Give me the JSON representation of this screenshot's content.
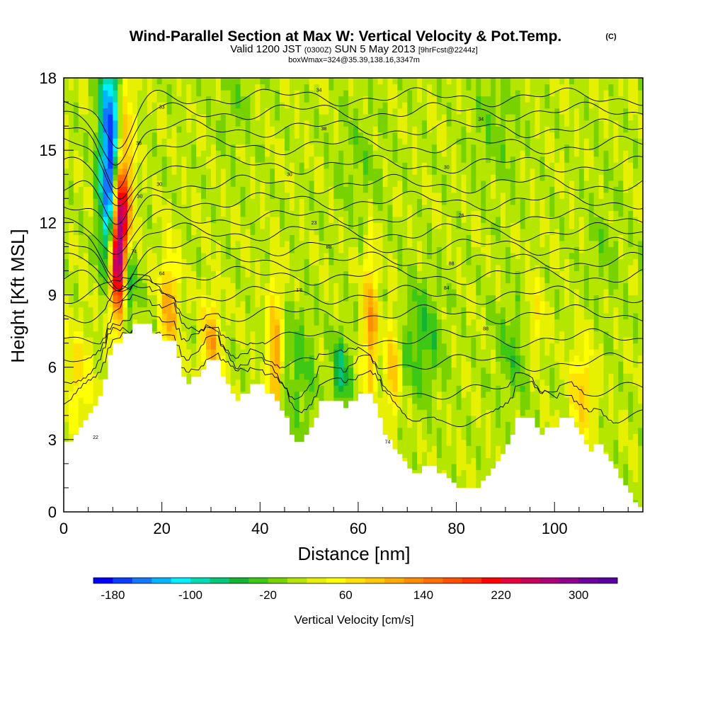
{
  "chart_data": {
    "type": "heatmap",
    "title": "Wind-Parallel Section at Max W: Vertical Velocity & Pot.Temp.",
    "title_mark": "(C)",
    "subtitle_valid": "Valid 1200 JST",
    "subtitle_z": "(0300Z)",
    "subtitle_date": "SUN 5 May 2013",
    "subtitle_fcst": "[9hrFcst@2244z]",
    "subtitle_box": "boxWmax=324@35.39,138.16,3347m",
    "xlabel": "Distance [nm]",
    "ylabel": "Height [Kft MSL]",
    "xlim": [
      0,
      118
    ],
    "ylim": [
      0,
      18
    ],
    "x_ticks": [
      "0",
      "20",
      "40",
      "60",
      "80",
      "100"
    ],
    "x_tick_values": [
      0,
      20,
      40,
      60,
      80,
      100
    ],
    "y_ticks": [
      "0",
      "3",
      "6",
      "9",
      "12",
      "15",
      "18"
    ],
    "y_tick_values": [
      0,
      3,
      6,
      9,
      12,
      15,
      18
    ],
    "colorbar": {
      "label": "Vertical Velocity [cm/s]",
      "tick_labels": [
        "-180",
        "-100",
        "-20",
        "60",
        "140",
        "220",
        "300"
      ],
      "min": -200,
      "max": 340,
      "step": 20,
      "colors": [
        "#0000ff",
        "#0a3cff",
        "#1478ff",
        "#00b4ff",
        "#00f0ff",
        "#00dcb4",
        "#00c878",
        "#14b432",
        "#3cc814",
        "#78d200",
        "#b4e600",
        "#e6f000",
        "#ffff00",
        "#ffe100",
        "#ffc800",
        "#ffaa00",
        "#ff8c00",
        "#ff6e00",
        "#ff5000",
        "#ff3200",
        "#ff0000",
        "#e6003c",
        "#c8005a",
        "#aa0078",
        "#8c008c",
        "#6e009b",
        "#5a00a0"
      ]
    },
    "terrain_height_kft": [
      [
        0,
        2.9
      ],
      [
        2,
        3.2
      ],
      [
        3,
        3.5
      ],
      [
        4,
        3.8
      ],
      [
        5,
        4.1
      ],
      [
        6,
        4.4
      ],
      [
        7,
        4.8
      ],
      [
        8,
        5.5
      ],
      [
        9,
        6.5
      ],
      [
        10,
        7.0
      ],
      [
        11,
        7.0
      ],
      [
        12,
        7.4
      ],
      [
        14,
        7.8
      ],
      [
        15,
        7.8
      ],
      [
        17,
        7.8
      ],
      [
        18,
        7.4
      ],
      [
        20,
        7.1
      ],
      [
        22,
        7.1
      ],
      [
        23,
        6.4
      ],
      [
        24,
        5.6
      ],
      [
        25,
        5.3
      ],
      [
        26,
        5.6
      ],
      [
        28,
        5.9
      ],
      [
        29,
        6.3
      ],
      [
        31,
        6.3
      ],
      [
        32,
        5.6
      ],
      [
        33,
        5.3
      ],
      [
        34,
        4.9
      ],
      [
        35,
        4.6
      ],
      [
        36,
        4.9
      ],
      [
        38,
        5.3
      ],
      [
        40,
        5.3
      ],
      [
        41,
        4.9
      ],
      [
        43,
        4.6
      ],
      [
        44,
        4.2
      ],
      [
        45,
        3.9
      ],
      [
        46,
        3.2
      ],
      [
        47,
        2.9
      ],
      [
        48,
        2.9
      ],
      [
        49,
        3.2
      ],
      [
        50,
        3.5
      ],
      [
        51,
        3.9
      ],
      [
        52,
        4.6
      ],
      [
        56,
        4.6
      ],
      [
        57,
        4.3
      ],
      [
        58,
        4.6
      ],
      [
        60,
        4.9
      ],
      [
        62,
        4.9
      ],
      [
        63,
        4.5
      ],
      [
        64,
        3.9
      ],
      [
        65,
        3.2
      ],
      [
        66,
        3.0
      ],
      [
        67,
        2.6
      ],
      [
        68,
        2.4
      ],
      [
        69,
        2.1
      ],
      [
        70,
        1.8
      ],
      [
        71,
        1.6
      ],
      [
        73,
        1.9
      ],
      [
        75,
        1.9
      ],
      [
        76,
        1.6
      ],
      [
        78,
        1.4
      ],
      [
        79,
        1.2
      ],
      [
        80,
        1.0
      ],
      [
        84,
        1.0
      ],
      [
        85,
        1.3
      ],
      [
        86,
        1.5
      ],
      [
        87,
        1.8
      ],
      [
        88,
        2.1
      ],
      [
        89,
        2.4
      ],
      [
        90,
        2.8
      ],
      [
        91,
        3.2
      ],
      [
        92,
        3.9
      ],
      [
        95,
        3.9
      ],
      [
        96,
        3.5
      ],
      [
        97,
        3.2
      ],
      [
        98,
        3.5
      ],
      [
        100,
        3.5
      ],
      [
        101,
        3.9
      ],
      [
        103,
        3.9
      ],
      [
        104,
        3.5
      ],
      [
        105,
        3.2
      ],
      [
        106,
        2.8
      ],
      [
        107,
        2.5
      ],
      [
        108,
        2.8
      ],
      [
        110,
        2.4
      ],
      [
        111,
        2.1
      ],
      [
        112,
        1.8
      ],
      [
        113,
        1.4
      ],
      [
        114,
        1.1
      ],
      [
        115,
        0.8
      ],
      [
        116,
        0.4
      ],
      [
        117,
        0.2
      ],
      [
        118,
        0.3
      ]
    ],
    "w_features": [
      {
        "x": 9.5,
        "z": 15.5,
        "sx": 1.6,
        "sz": 2.8,
        "w": -190
      },
      {
        "x": 9.5,
        "z": 12.0,
        "sx": 1.3,
        "sz": 1.8,
        "w": -110
      },
      {
        "x": 11.0,
        "z": 10.2,
        "sx": 1.2,
        "sz": 1.6,
        "w": 290
      },
      {
        "x": 11.5,
        "z": 12.6,
        "sx": 1.3,
        "sz": 1.4,
        "w": 200
      },
      {
        "x": 12.3,
        "z": 15.5,
        "sx": 1.3,
        "sz": 2.2,
        "w": 90
      },
      {
        "x": 13.0,
        "z": 9.5,
        "sx": 1.2,
        "sz": 1.2,
        "w": -90
      },
      {
        "x": 21.5,
        "z": 8.5,
        "sx": 1.3,
        "sz": 1.5,
        "w": 100
      },
      {
        "x": 30.0,
        "z": 7.0,
        "sx": 1.4,
        "sz": 1.3,
        "w": 90
      },
      {
        "x": 43.0,
        "z": 6.5,
        "sx": 1.0,
        "sz": 2.0,
        "w": 110
      },
      {
        "x": 48.0,
        "z": 6.0,
        "sx": 2.6,
        "sz": 2.0,
        "w": -40
      },
      {
        "x": 56.5,
        "z": 5.8,
        "sx": 1.3,
        "sz": 1.1,
        "w": -80
      },
      {
        "x": 62.5,
        "z": 7.8,
        "sx": 1.0,
        "sz": 2.1,
        "w": 110
      },
      {
        "x": 67.0,
        "z": 6.0,
        "sx": 0.9,
        "sz": 1.5,
        "w": 90
      },
      {
        "x": 73.0,
        "z": 7.2,
        "sx": 3.0,
        "sz": 1.8,
        "w": -50
      },
      {
        "x": 92.0,
        "z": 6.8,
        "sx": 3.0,
        "sz": 1.6,
        "w": -40
      },
      {
        "x": 105.5,
        "z": 5.0,
        "sx": 1.6,
        "sz": 1.4,
        "w": 70
      },
      {
        "x": 96.0,
        "z": 7.8,
        "sx": 1.4,
        "sz": 1.3,
        "w": 50
      },
      {
        "x": 3.0,
        "z": 5.5,
        "sx": 2.0,
        "sz": 1.5,
        "w": 50
      },
      {
        "x": 60.0,
        "z": 14.5,
        "sx": 4.0,
        "sz": 2.0,
        "w": -20
      },
      {
        "x": 88.0,
        "z": 16.0,
        "sx": 4.0,
        "sz": 2.0,
        "w": -25
      },
      {
        "x": 110.0,
        "z": 11.0,
        "sx": 3.0,
        "sz": 2.0,
        "w": -20
      },
      {
        "x": 35.0,
        "z": 17.0,
        "sx": 3.0,
        "sz": 1.5,
        "w": -20
      }
    ],
    "theta_contour_heights_kft": [
      3.9,
      5.0,
      6.2,
      7.2,
      8.2,
      9.0,
      9.8,
      10.4,
      11.0,
      11.6,
      12.2,
      12.9,
      13.6,
      14.4,
      15.2,
      15.9,
      16.6,
      17.2
    ],
    "theta_labels": [
      {
        "x": 6.5,
        "z": 3.1,
        "text": "22"
      },
      {
        "x": 20.0,
        "z": 9.9,
        "text": "64"
      },
      {
        "x": 48.0,
        "z": 9.2,
        "text": "1'6"
      },
      {
        "x": 78.0,
        "z": 9.3,
        "text": "84"
      },
      {
        "x": 86.0,
        "z": 7.6,
        "text": "88"
      },
      {
        "x": 79.0,
        "z": 10.3,
        "text": "88"
      },
      {
        "x": 54.0,
        "z": 11.0,
        "text": "88"
      },
      {
        "x": 51.0,
        "z": 12.0,
        "text": "23"
      },
      {
        "x": 81.0,
        "z": 12.3,
        "text": "26"
      },
      {
        "x": 46.0,
        "z": 14.0,
        "text": "30"
      },
      {
        "x": 78.0,
        "z": 14.3,
        "text": "30"
      },
      {
        "x": 53.0,
        "z": 15.9,
        "text": "38"
      },
      {
        "x": 85.0,
        "z": 16.3,
        "text": "34"
      },
      {
        "x": 52.0,
        "z": 17.5,
        "text": "34"
      },
      {
        "x": 15.5,
        "z": 13.1,
        "text": "30"
      },
      {
        "x": 19.5,
        "z": 13.6,
        "text": "30"
      },
      {
        "x": 15.3,
        "z": 15.3,
        "text": "38"
      },
      {
        "x": 20.0,
        "z": 16.8,
        "text": "33"
      },
      {
        "x": 14.3,
        "z": 10.8,
        "text": "74"
      },
      {
        "x": 66.0,
        "z": 2.9,
        "text": "74"
      }
    ]
  }
}
